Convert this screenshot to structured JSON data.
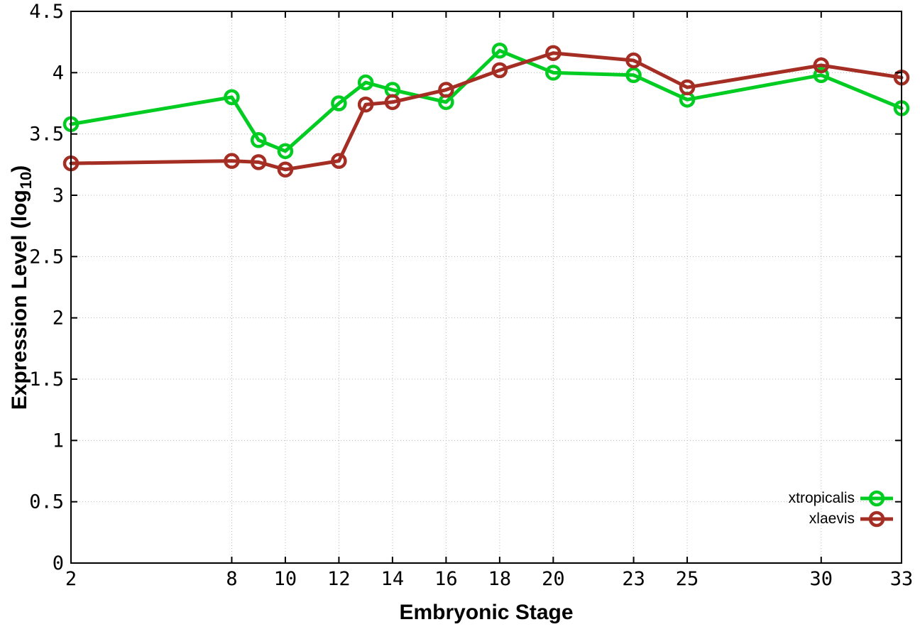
{
  "chart_data": {
    "type": "line",
    "title": "",
    "xlabel": "Embryonic Stage",
    "ylabel": {
      "main": "Expression Level (log",
      "sub": "10",
      "close": ")"
    },
    "xlim": [
      2,
      33
    ],
    "ylim": [
      0,
      4.5
    ],
    "xticks": [
      2,
      8,
      10,
      12,
      14,
      16,
      18,
      20,
      23,
      25,
      30,
      33
    ],
    "yticks": [
      0,
      0.5,
      1,
      1.5,
      2,
      2.5,
      3,
      3.5,
      4,
      4.5
    ],
    "grid": true,
    "legend_position": "inside-bottom-right",
    "x": [
      2,
      8,
      9,
      10,
      12,
      13,
      14,
      16,
      18,
      20,
      23,
      25,
      30,
      33
    ],
    "series": [
      {
        "name": "xtropicalis",
        "color": "#00cc22",
        "values": [
          3.58,
          3.8,
          3.45,
          3.36,
          3.75,
          3.92,
          3.86,
          3.76,
          4.18,
          4.0,
          3.98,
          3.78,
          3.98,
          3.71
        ]
      },
      {
        "name": "xlaevis",
        "color": "#a52e24",
        "values": [
          3.26,
          3.28,
          3.27,
          3.21,
          3.28,
          3.74,
          3.76,
          3.86,
          4.02,
          4.16,
          4.1,
          3.88,
          4.06,
          3.96
        ]
      }
    ]
  },
  "colors": {
    "background": "#ffffff",
    "grid": "#b8b8b8",
    "axis": "#000000",
    "text": "#000000"
  }
}
